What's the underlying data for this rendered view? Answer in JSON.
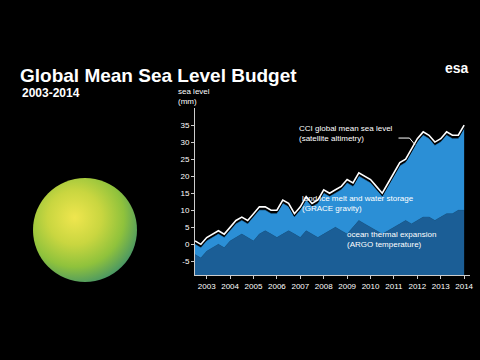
{
  "chart_data": {
    "type": "area",
    "title": "Global Mean Sea Level Budget",
    "subtitle": "2003-2014",
    "y_label": "sea level (mm)",
    "annotations": [
      {
        "text": "esa"
      }
    ],
    "x": [
      2003,
      2003.25,
      2003.5,
      2003.75,
      2004,
      2004.25,
      2004.5,
      2004.75,
      2005,
      2005.25,
      2005.5,
      2005.75,
      2006,
      2006.25,
      2006.5,
      2006.75,
      2007,
      2007.25,
      2007.5,
      2007.75,
      2008,
      2008.25,
      2008.5,
      2008.75,
      2009,
      2009.25,
      2009.5,
      2009.75,
      2010,
      2010.25,
      2010.5,
      2010.75,
      2011,
      2011.25,
      2011.5,
      2011.75,
      2012,
      2012.25,
      2012.5,
      2012.75,
      2013,
      2013.25,
      2013.5,
      2013.75,
      2014,
      2014.25,
      2014.5
    ],
    "xlim": [
      2003,
      2014.75
    ],
    "xticks": [
      {
        "value": 2003.5,
        "label": "2003"
      },
      {
        "value": 2004.5,
        "label": "2004"
      },
      {
        "value": 2005.5,
        "label": "2005"
      },
      {
        "value": 2006.5,
        "label": "2006"
      },
      {
        "value": 2007.5,
        "label": "2007"
      },
      {
        "value": 2008.5,
        "label": "2008"
      },
      {
        "value": 2009.5,
        "label": "2009"
      },
      {
        "value": 2010.5,
        "label": "2010"
      },
      {
        "value": 2011.5,
        "label": "2011"
      },
      {
        "value": 2012.5,
        "label": "2012"
      },
      {
        "value": 2013.5,
        "label": "2013"
      },
      {
        "value": 2014.5,
        "label": "2014"
      }
    ],
    "ylim": [
      -9,
      40
    ],
    "yticks": [
      -5,
      0,
      5,
      10,
      15,
      20,
      25,
      30,
      35
    ],
    "grid": false,
    "stacked": true,
    "series": [
      {
        "name": "ocean thermal expansion (ARGO temperature)",
        "type": "area",
        "color": "#1b5e96",
        "values": [
          -3,
          -4,
          -2,
          -1,
          0,
          -1,
          1,
          2,
          3,
          2,
          1,
          3,
          4,
          3,
          2,
          3,
          4,
          3,
          2,
          4,
          3,
          2,
          3,
          4,
          5,
          4,
          3,
          5,
          7,
          6,
          5,
          4,
          3,
          4,
          5,
          6,
          7,
          6,
          7,
          8,
          8,
          7,
          8,
          9,
          9,
          10,
          10
        ]
      },
      {
        "name": "land ice melt and water storage (GRACE gravity)",
        "type": "area",
        "color": "#2b8fd6",
        "values": [
          3,
          3,
          3,
          3,
          3,
          3,
          3,
          4,
          4,
          4,
          7,
          7,
          6,
          6,
          7,
          9,
          7,
          5,
          8,
          9,
          8,
          10,
          12,
          10,
          10,
          12,
          15,
          12,
          13,
          13,
          13,
          12,
          11,
          13,
          15,
          17,
          17,
          21,
          23,
          24,
          23,
          22,
          22,
          23,
          22,
          21,
          24
        ]
      },
      {
        "name": "CCI global mean sea level (satellite altimetry)",
        "type": "line",
        "color": "#ffffff",
        "values": [
          1,
          0,
          2,
          3,
          4,
          3,
          5,
          7,
          8,
          7,
          9,
          11,
          11,
          10,
          10,
          13,
          12,
          9,
          11,
          14,
          12,
          13,
          16,
          15,
          16,
          17,
          19,
          18,
          21,
          20,
          19,
          17,
          15,
          18,
          21,
          24,
          25,
          28,
          31,
          33,
          32,
          30,
          31,
          33,
          32,
          32,
          35
        ]
      }
    ]
  }
}
